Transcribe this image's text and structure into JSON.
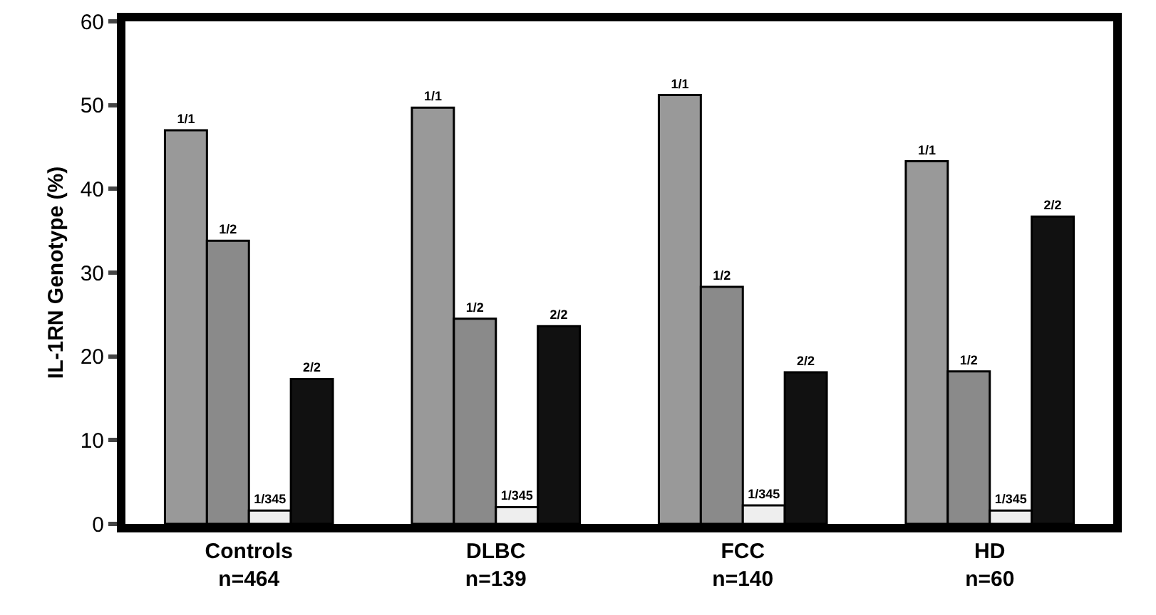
{
  "chart_data": {
    "type": "bar",
    "ylabel": "IL-1RN Genotype (%)",
    "categories": [
      "Controls\nn=464",
      "DLBC\nn=139",
      "FCC\nn=140",
      "HD\nn=60"
    ],
    "series": [
      {
        "name": "1/1",
        "color": "#999999",
        "values": [
          47.0,
          49.7,
          51.2,
          43.3
        ]
      },
      {
        "name": "1/2",
        "color": "#8a8a8a",
        "values": [
          33.8,
          24.5,
          28.3,
          18.2
        ]
      },
      {
        "name": "1/345",
        "color": "#eeeeee",
        "values": [
          1.6,
          2.0,
          2.2,
          1.6
        ]
      },
      {
        "name": "2/2",
        "color": "#111111",
        "values": [
          17.3,
          23.6,
          18.1,
          36.7
        ]
      }
    ],
    "ylim": [
      0,
      60
    ],
    "yticks": [
      0,
      10,
      20,
      30,
      40,
      50,
      60
    ],
    "grid": false,
    "legend": false
  }
}
